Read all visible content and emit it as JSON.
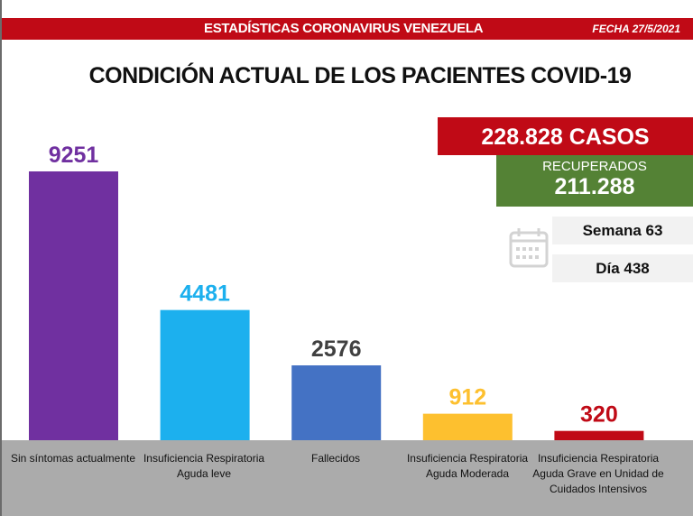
{
  "header": {
    "banner_title": "ESTADÍSTICAS CORONAVIRUS VENEZUELA",
    "date": "FECHA 27/5/2021"
  },
  "title": "CONDICIÓN ACTUAL DE LOS PACIENTES COVID-19",
  "summary": {
    "casos": "228.828 CASOS",
    "recuperados_label": "RECUPERADOS",
    "recuperados_value": "211.288",
    "semana": "Semana 63",
    "dia": "Día 438",
    "calendar_icon": "calendar-icon"
  },
  "chart_data": {
    "type": "bar",
    "title": "CONDICIÓN ACTUAL DE LOS PACIENTES COVID-19",
    "categories": [
      "Sin síntomas actualmente",
      "Insuficiencia Respiratoria Aguda leve",
      "Fallecidos",
      "Insuficiencia Respiratoria Aguda Moderada",
      "Insuficiencia Respiratoria Aguda Grave en Unidad de Cuidados Intensivos"
    ],
    "values": [
      9251,
      4481,
      2576,
      912,
      320
    ],
    "colors": [
      "#7030a0",
      "#1cb0ee",
      "#4472c4",
      "#fdc02f",
      "#c00a16"
    ],
    "label_colors": [
      "#7030a0",
      "#1cb0ee",
      "#404040",
      "#fdc02f",
      "#c00a16"
    ],
    "grid": false
  }
}
